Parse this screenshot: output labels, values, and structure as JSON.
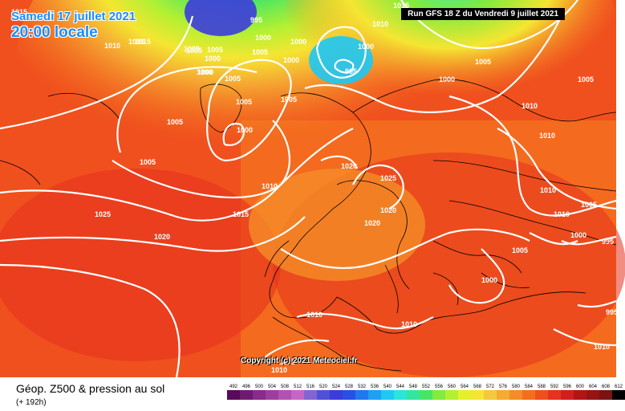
{
  "header": {
    "date_line1": "Samedi 17 juillet 2021",
    "date_line2": "20:00 locale",
    "run": "Run GFS 18 Z du Vendredi 9 juillet 2021"
  },
  "copyright": "Copyright (c) 2021 Meteociel.fr",
  "legend": {
    "title": "Géop. Z500 & pression au sol",
    "subtitle": "(+ 192h)",
    "scale": [
      {
        "label": "492",
        "color": "#5a0a5a"
      },
      {
        "label": "496",
        "color": "#6e1a6e"
      },
      {
        "label": "500",
        "color": "#8a2a8a"
      },
      {
        "label": "504",
        "color": "#a03ca0"
      },
      {
        "label": "508",
        "color": "#b450b4"
      },
      {
        "label": "512",
        "color": "#c864c8"
      },
      {
        "label": "516",
        "color": "#8264d2"
      },
      {
        "label": "520",
        "color": "#5050d8"
      },
      {
        "label": "524",
        "color": "#3c3cdc"
      },
      {
        "label": "528",
        "color": "#2850e6"
      },
      {
        "label": "532",
        "color": "#1e78f0"
      },
      {
        "label": "536",
        "color": "#1ea0f5"
      },
      {
        "label": "540",
        "color": "#1ec8f5"
      },
      {
        "label": "544",
        "color": "#28e6dc"
      },
      {
        "label": "548",
        "color": "#32e6a0"
      },
      {
        "label": "552",
        "color": "#46e664"
      },
      {
        "label": "556",
        "color": "#82eb3c"
      },
      {
        "label": "560",
        "color": "#b4f032"
      },
      {
        "label": "564",
        "color": "#e6f028"
      },
      {
        "label": "568",
        "color": "#f5e632"
      },
      {
        "label": "572",
        "color": "#f5c83c"
      },
      {
        "label": "576",
        "color": "#f5aa32"
      },
      {
        "label": "580",
        "color": "#f58c28"
      },
      {
        "label": "584",
        "color": "#f56e1e"
      },
      {
        "label": "588",
        "color": "#f0501e"
      },
      {
        "label": "592",
        "color": "#e6321e"
      },
      {
        "label": "596",
        "color": "#d21e1e"
      },
      {
        "label": "600",
        "color": "#b41414"
      },
      {
        "label": "604",
        "color": "#961414"
      },
      {
        "label": "608",
        "color": "#781414"
      },
      {
        "label": "612",
        "color": "#000000"
      }
    ]
  },
  "isobars": [
    "1015",
    "1010",
    "1015",
    "1005",
    "1000",
    "1015",
    "995",
    "1000",
    "1000",
    "1000",
    "1005",
    "1000",
    "1005",
    "1005",
    "1000",
    "1005",
    "995",
    "1015",
    "1000",
    "1005",
    "1005",
    "1005",
    "1000",
    "1005",
    "1010",
    "1010",
    "1005",
    "1010",
    "1015",
    "1025",
    "1020",
    "1020",
    "1025",
    "1020",
    "1020",
    "1010",
    "1010",
    "1010",
    "1005",
    "1000",
    "995",
    "1000",
    "1005",
    "995",
    "1010",
    "1010",
    "1010",
    "1015",
    "1005",
    "1000",
    "1010"
  ]
}
